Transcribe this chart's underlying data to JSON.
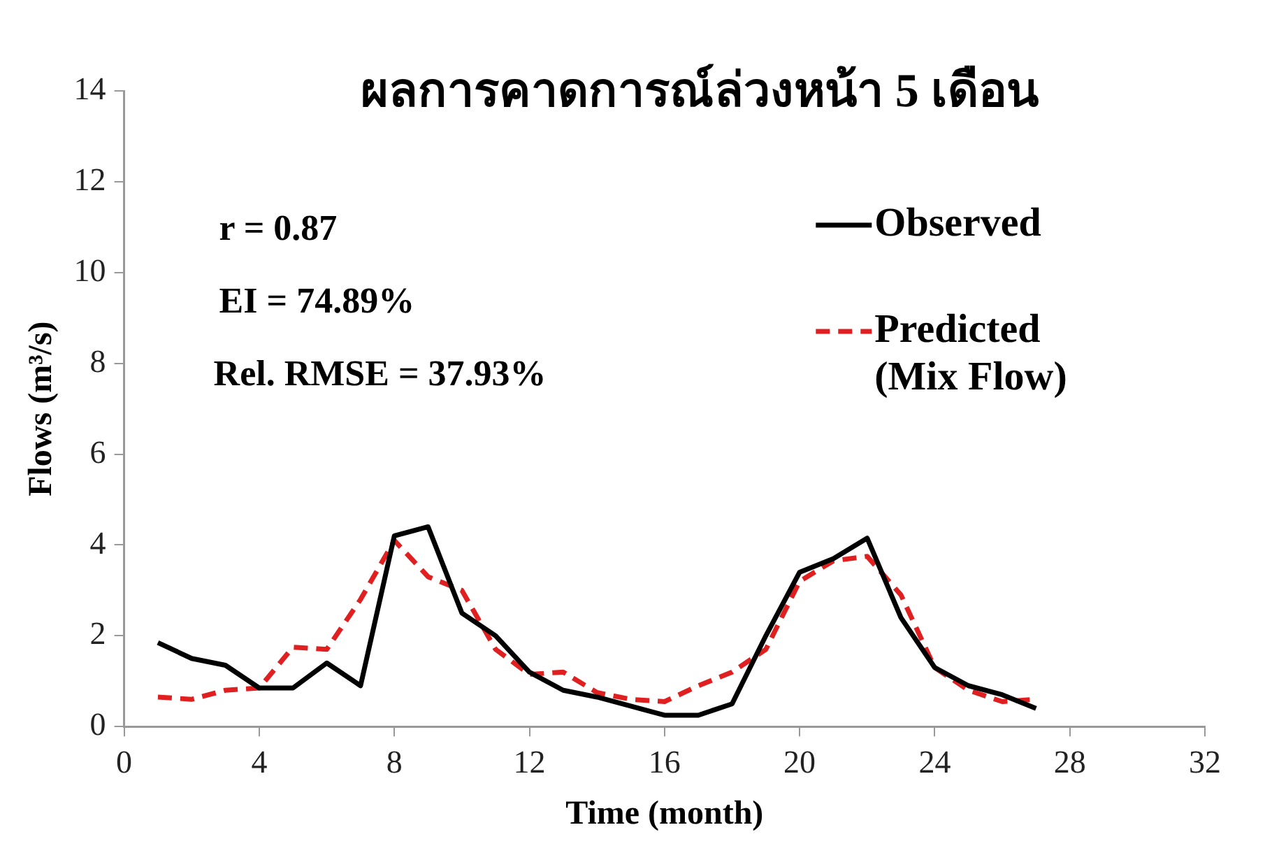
{
  "chart_data": {
    "type": "line",
    "title": "ผลการคาดการณ์ล่วงหน้า 5 เดือน",
    "xlabel": "Time (month)",
    "ylabel": "Flows (m³/s)",
    "x": [
      1,
      2,
      3,
      4,
      5,
      6,
      7,
      8,
      9,
      10,
      11,
      12,
      13,
      14,
      15,
      16,
      17,
      18,
      19,
      20,
      21,
      22,
      23,
      24,
      25,
      26,
      27
    ],
    "series": [
      {
        "name": "Observed",
        "color": "#000000",
        "line_style": "solid",
        "values": [
          1.85,
          1.5,
          1.35,
          0.85,
          0.85,
          1.4,
          0.9,
          4.2,
          4.4,
          2.5,
          2.0,
          1.2,
          0.8,
          0.65,
          0.45,
          0.25,
          0.25,
          0.5,
          2.0,
          3.4,
          3.7,
          4.15,
          2.4,
          1.3,
          0.9,
          0.7,
          0.4
        ]
      },
      {
        "name": "Predicted (Mix Flow)",
        "color": "#e02020",
        "line_style": "dashed",
        "values": [
          0.65,
          0.6,
          0.8,
          0.85,
          1.75,
          1.7,
          2.8,
          4.1,
          3.3,
          3.0,
          1.7,
          1.15,
          1.2,
          0.75,
          0.6,
          0.55,
          0.9,
          1.2,
          1.7,
          3.2,
          3.65,
          3.75,
          2.9,
          1.3,
          0.8,
          0.55,
          0.6
        ]
      }
    ],
    "xlim": [
      0,
      32
    ],
    "xticks": [
      0,
      4,
      8,
      12,
      16,
      20,
      24,
      28,
      32
    ],
    "ylim": [
      0,
      14
    ],
    "yticks": [
      0,
      2,
      4,
      6,
      8,
      10,
      12,
      14
    ],
    "grid": false,
    "legend": "top right",
    "marker": "none",
    "annotations": [
      "r = 0.87",
      "EI = 74.89%",
      "Rel. RMSE = 37.93%"
    ]
  }
}
